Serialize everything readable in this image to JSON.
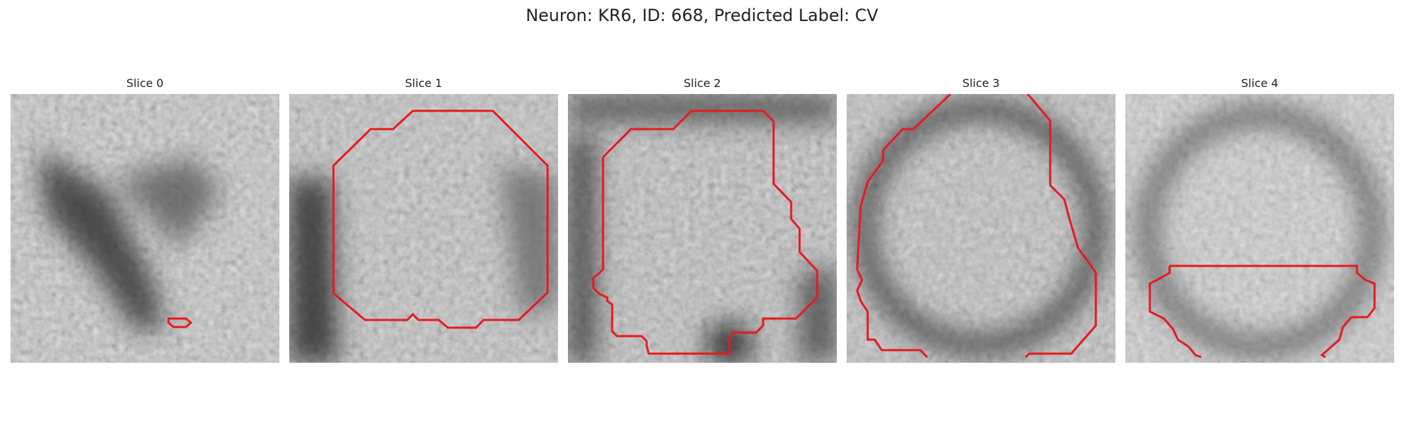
{
  "figure": {
    "title": "Neuron: KR6, ID: 668, Predicted Label: CV"
  },
  "panels": [
    {
      "title": "Slice 0"
    },
    {
      "title": "Slice 1"
    },
    {
      "title": "Slice 2"
    },
    {
      "title": "Slice 3"
    },
    {
      "title": "Slice 4"
    }
  ],
  "colors": {
    "contour": "#e8191c",
    "background": "#ffffff"
  }
}
